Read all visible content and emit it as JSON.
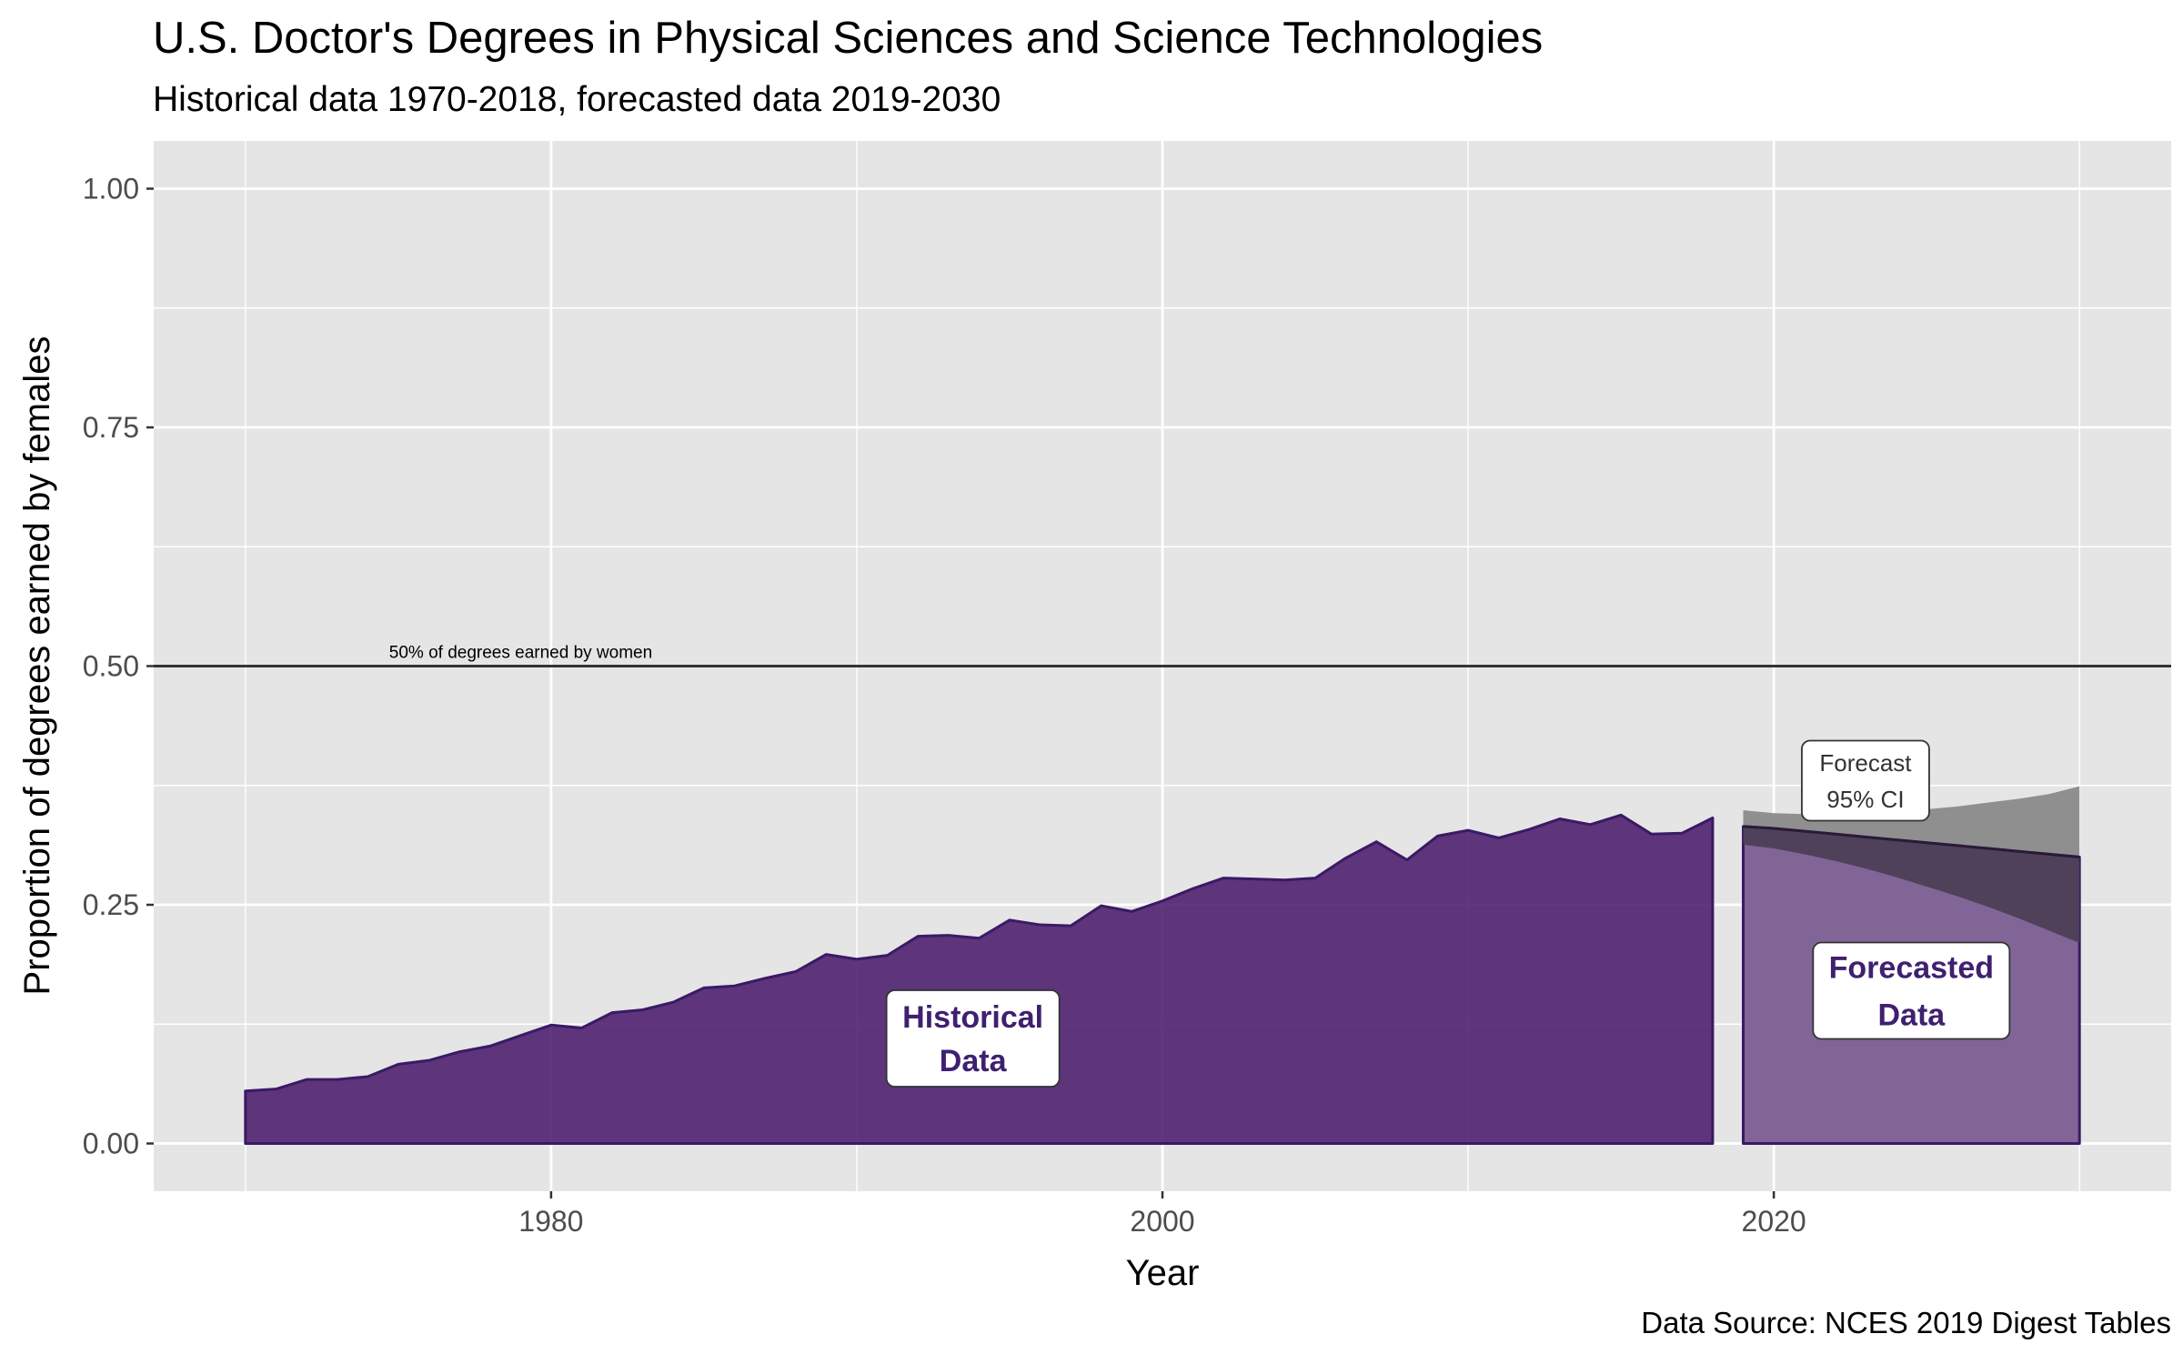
{
  "chart_data": {
    "type": "area",
    "title": "U.S. Doctor's Degrees in Physical Sciences and Science Technologies",
    "subtitle": "Historical data 1970-2018, forecasted data 2019-2030",
    "caption": "Data Source: NCES 2019 Digest Tables",
    "xlabel": "Year",
    "ylabel": "Proportion of degrees earned by females",
    "xlim": [
      1967,
      2033
    ],
    "ylim": [
      -0.05,
      1.05
    ],
    "x_ticks": [
      1980,
      2000,
      2020
    ],
    "x_tick_labels": [
      "1980",
      "2000",
      "2020"
    ],
    "y_ticks": [
      0,
      0.25,
      0.5,
      0.75,
      1.0
    ],
    "y_tick_labels": [
      "0.00",
      "0.25",
      "0.50",
      "0.75",
      "1.00"
    ],
    "grid": true,
    "reference_line": {
      "y": 0.5,
      "label": "50% of degrees earned by women"
    },
    "historical": {
      "x": [
        1970,
        1971,
        1972,
        1973,
        1974,
        1975,
        1976,
        1977,
        1978,
        1979,
        1980,
        1981,
        1982,
        1983,
        1984,
        1985,
        1986,
        1987,
        1988,
        1989,
        1990,
        1991,
        1992,
        1993,
        1994,
        1995,
        1996,
        1997,
        1998,
        1999,
        2000,
        2001,
        2002,
        2003,
        2004,
        2005,
        2006,
        2007,
        2008,
        2009,
        2010,
        2011,
        2012,
        2013,
        2014,
        2015,
        2016,
        2017,
        2018
      ],
      "y": [
        0.055,
        0.057,
        0.067,
        0.067,
        0.07,
        0.083,
        0.087,
        0.096,
        0.102,
        0.113,
        0.124,
        0.121,
        0.137,
        0.14,
        0.148,
        0.163,
        0.165,
        0.173,
        0.18,
        0.198,
        0.193,
        0.197,
        0.217,
        0.218,
        0.215,
        0.234,
        0.229,
        0.228,
        0.249,
        0.243,
        0.254,
        0.267,
        0.278,
        0.277,
        0.276,
        0.278,
        0.299,
        0.316,
        0.297,
        0.322,
        0.328,
        0.32,
        0.329,
        0.34,
        0.334,
        0.344,
        0.324,
        0.325,
        0.341
      ],
      "color": "#4b1b6b"
    },
    "forecast": {
      "x": [
        2019,
        2020,
        2021,
        2022,
        2023,
        2024,
        2025,
        2026,
        2027,
        2028,
        2029,
        2030
      ],
      "y": [
        0.332,
        0.33,
        0.327,
        0.324,
        0.321,
        0.318,
        0.315,
        0.312,
        0.309,
        0.306,
        0.303,
        0.3
      ],
      "ci_lower": [
        0.313,
        0.309,
        0.303,
        0.296,
        0.288,
        0.279,
        0.269,
        0.259,
        0.248,
        0.236,
        0.223,
        0.21
      ],
      "ci_upper": [
        0.349,
        0.346,
        0.345,
        0.345,
        0.346,
        0.348,
        0.35,
        0.353,
        0.357,
        0.361,
        0.366,
        0.374
      ],
      "color": "#806596"
    },
    "annotations": [
      {
        "text": "Historical\nData",
        "x": 1993.8,
        "y": 0.11
      },
      {
        "text": "Forecasted\nData",
        "x": 2024.5,
        "y": 0.16
      },
      {
        "text": "Forecast\n95% CI",
        "x": 2023.0,
        "y": 0.38
      }
    ],
    "colors": {
      "panel_bg": "#e5e5e5",
      "grid": "#ffffff",
      "historical_fill": "#4b1b6b",
      "historical_stroke": "#3a1a66",
      "forecast_fill": "#806596",
      "ci_fill": "#8a8a8a",
      "ci_overlap": "#4c3f56",
      "label_text": "#3f2070"
    }
  }
}
